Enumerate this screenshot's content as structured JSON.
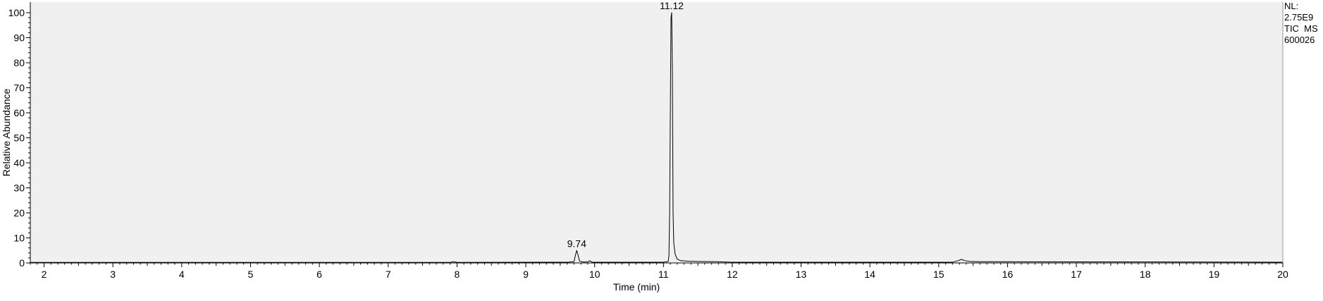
{
  "info": {
    "nl_label": "NL:",
    "nl_value": "2.75E9",
    "trace_label": "TIC  MS",
    "sample_id": "600026"
  },
  "chart_data": {
    "type": "line",
    "title": "",
    "xlabel": "Time (min)",
    "ylabel": "Relative Abundance",
    "xlim": [
      1.8,
      20.0
    ],
    "ylim": [
      0,
      100
    ],
    "x_ticks": [
      2,
      3,
      4,
      5,
      6,
      7,
      8,
      9,
      10,
      11,
      12,
      13,
      14,
      15,
      16,
      17,
      18,
      19,
      20
    ],
    "y_ticks": [
      0,
      10,
      20,
      30,
      40,
      50,
      60,
      70,
      80,
      90,
      100
    ],
    "grid": false,
    "background": "#f0f0f0",
    "line_color": "#000000",
    "series": [
      {
        "x": [
          1.8,
          5.0,
          7.9,
          7.95,
          8.0,
          9.6,
          9.7,
          9.72,
          9.74,
          9.76,
          9.78,
          9.82,
          9.9,
          9.93,
          9.96,
          10.5,
          11.0,
          11.07,
          11.08,
          11.09,
          11.1,
          11.11,
          11.12,
          11.13,
          11.14,
          11.15,
          11.17,
          11.2,
          11.25,
          11.35,
          11.5,
          11.75,
          12.0,
          15.2,
          15.28,
          15.33,
          15.38,
          15.45,
          15.6,
          20.0
        ],
        "y": [
          0.2,
          0.2,
          0.2,
          0.5,
          0.2,
          0.3,
          0.5,
          3.0,
          5.0,
          3.0,
          0.8,
          0.4,
          0.4,
          0.9,
          0.3,
          0.3,
          0.3,
          0.6,
          3.0,
          20,
          60,
          98,
          100,
          76,
          20,
          8,
          3.5,
          1.5,
          0.9,
          0.7,
          0.6,
          0.5,
          0.3,
          0.3,
          0.9,
          1.4,
          0.9,
          0.6,
          0.5,
          0.3
        ]
      }
    ],
    "peak_labels": [
      {
        "x": 9.74,
        "y": 5.0,
        "text": "9.74"
      },
      {
        "x": 11.12,
        "y": 100,
        "text": "11.12"
      }
    ]
  }
}
